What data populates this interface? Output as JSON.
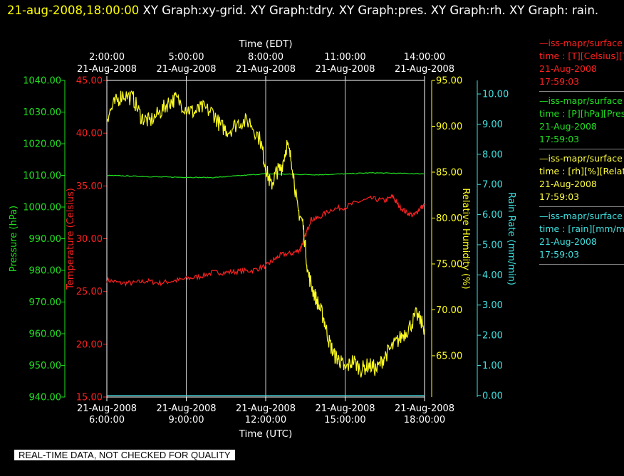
{
  "header": {
    "timestamp": "21-aug-2008,18:00:00",
    "titles": "XY Graph:xy-grid.  XY Graph:tdry.  XY Graph:pres.  XY Graph:rh.  XY Graph: rain."
  },
  "footer_note": "REAL-TIME DATA, NOT CHECKED FOR QUALITY",
  "legend": [
    {
      "line1": "—iss-mapr/surface",
      "line2": "time : [T][Celsius][T",
      "date": "21-Aug-2008",
      "time": "17:59:03",
      "color": "#ff2020"
    },
    {
      "line1": "—iss-mapr/surface",
      "line2": "time : [P][hPa][Pres",
      "date": "21-Aug-2008",
      "time": "17:59:03",
      "color": "#20e020"
    },
    {
      "line1": "—iss-mapr/surface",
      "line2": "time : [rh][%][Relati",
      "date": "21-Aug-2008",
      "time": "17:59:03",
      "color": "#ffff40"
    },
    {
      "line1": "—iss-mapr/surface",
      "line2": "time : [rain][mm/min",
      "date": "21-Aug-2008",
      "time": "17:59:03",
      "color": "#40e0e0"
    }
  ],
  "chart_data": {
    "type": "line",
    "x_top_label": "Time (EDT)",
    "x_bottom_label": "Time (UTC)",
    "x_top_ticks": [
      {
        "date": "21-Aug-2008",
        "time": "2:00:00"
      },
      {
        "date": "21-Aug-2008",
        "time": "5:00:00"
      },
      {
        "date": "21-Aug-2008",
        "time": "8:00:00"
      },
      {
        "date": "21-Aug-2008",
        "time": "11:00:00"
      },
      {
        "date": "21-Aug-2008",
        "time": "14:00:00"
      }
    ],
    "x_bottom_ticks": [
      {
        "date": "21-Aug-2008",
        "time": "6:00:00"
      },
      {
        "date": "21-Aug-2008",
        "time": "9:00:00"
      },
      {
        "date": "21-Aug-2008",
        "time": "12:00:00"
      },
      {
        "date": "21-Aug-2008",
        "time": "15:00:00"
      },
      {
        "date": "21-Aug-2008",
        "time": "18:00:00"
      }
    ],
    "x_range_utc_hours": [
      6,
      18
    ],
    "vertical_grid_utc_hours": [
      9,
      12,
      15
    ],
    "axes": {
      "pressure": {
        "label": "Pressure (hPa)",
        "color": "#20e020",
        "range": [
          940,
          1040
        ],
        "ticks": [
          "940.00",
          "950.00",
          "960.00",
          "970.00",
          "980.00",
          "990.00",
          "1000.00",
          "1010.00",
          "1020.00",
          "1030.00",
          "1040.00"
        ]
      },
      "temperature": {
        "label": "Temperature (Celsius)",
        "color": "#ff2020",
        "range": [
          15,
          45
        ],
        "ticks": [
          "15.00",
          "20.00",
          "25.00",
          "30.00",
          "35.00",
          "40.00",
          "45.00"
        ]
      },
      "humidity": {
        "label": "Relative Humidity (%)",
        "color": "#ffff20",
        "range": [
          60.5,
          95.0
        ],
        "ticks": [
          "65.00",
          "70.00",
          "75.00",
          "80.00",
          "85.00",
          "90.00",
          "95.00"
        ]
      },
      "rain": {
        "label": "Rain Rate (mm/min)",
        "color": "#40e0e0",
        "range": [
          -0.05,
          10.45
        ],
        "ticks": [
          "0.00",
          "1.00",
          "2.00",
          "3.00",
          "4.00",
          "5.00",
          "6.00",
          "7.00",
          "8.00",
          "9.00",
          "10.00"
        ]
      }
    },
    "series": [
      {
        "name": "T",
        "axis": "temperature",
        "color": "#ff2020",
        "x": [
          6.0,
          6.5,
          7.0,
          7.5,
          8.0,
          8.5,
          9.0,
          9.5,
          10.0,
          10.5,
          11.0,
          11.5,
          12.0,
          12.3,
          12.6,
          13.0,
          13.3,
          13.5,
          13.7,
          14.0,
          14.5,
          15.0,
          15.5,
          16.0,
          16.5,
          16.8,
          17.0,
          17.3,
          17.6,
          17.8,
          18.0
        ],
        "y": [
          26.1,
          25.8,
          25.8,
          26.0,
          25.8,
          26.0,
          26.2,
          26.4,
          26.8,
          26.8,
          26.9,
          27.0,
          27.4,
          28.0,
          28.5,
          28.6,
          29.0,
          30.3,
          31.8,
          32.0,
          32.8,
          33.0,
          33.5,
          33.8,
          33.6,
          34.0,
          33.2,
          32.5,
          32.2,
          32.8,
          33.2
        ]
      },
      {
        "name": "P",
        "axis": "pressure",
        "color": "#20e020",
        "x": [
          6,
          8,
          10,
          12,
          14,
          16,
          18
        ],
        "y": [
          1010.0,
          1009.5,
          1009.3,
          1010.5,
          1010.2,
          1010.8,
          1010.5
        ]
      },
      {
        "name": "rh",
        "axis": "humidity",
        "color": "#ffff20",
        "x": [
          6.0,
          6.3,
          6.6,
          7.0,
          7.3,
          7.6,
          8.0,
          8.3,
          8.6,
          9.0,
          9.3,
          9.6,
          10.0,
          10.3,
          10.6,
          11.0,
          11.4,
          11.8,
          12.0,
          12.2,
          12.4,
          12.6,
          12.8,
          13.0,
          13.2,
          13.4,
          13.6,
          13.8,
          14.0,
          14.2,
          14.4,
          14.6,
          14.8,
          15.0,
          15.3,
          15.6,
          15.9,
          16.2,
          16.5,
          16.8,
          17.1,
          17.4,
          17.7,
          18.0
        ],
        "y": [
          91.0,
          92.5,
          93.5,
          93.0,
          91.0,
          90.5,
          91.5,
          92.5,
          93.0,
          92.0,
          91.5,
          92.0,
          91.5,
          90.0,
          89.5,
          90.5,
          90.5,
          88.5,
          85.5,
          83.5,
          85.0,
          85.5,
          88.0,
          86.0,
          81.0,
          79.5,
          74.0,
          72.0,
          70.5,
          69.0,
          66.5,
          65.0,
          64.5,
          63.5,
          64.5,
          63.5,
          64.0,
          63.5,
          65.0,
          66.0,
          67.0,
          68.0,
          69.5,
          68.0
        ]
      },
      {
        "name": "rain",
        "axis": "rain",
        "color": "#40e0e0",
        "x": [
          6,
          18
        ],
        "y": [
          0.0,
          0.0
        ]
      }
    ],
    "grid": true
  }
}
